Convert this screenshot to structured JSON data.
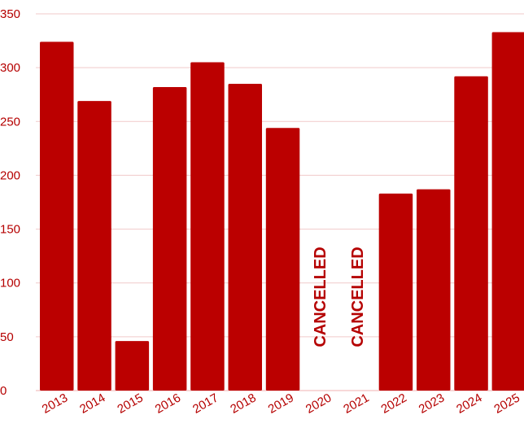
{
  "chart_data": {
    "type": "bar",
    "categories": [
      "2013",
      "2014",
      "2015",
      "2016",
      "2017",
      "2018",
      "2019",
      "2020",
      "2021",
      "2022",
      "2023",
      "2024",
      "2025"
    ],
    "values": [
      324,
      269,
      46,
      282,
      305,
      285,
      244,
      null,
      null,
      183,
      187,
      292,
      333
    ],
    "ylim": [
      0,
      350
    ],
    "yticks": [
      0,
      50,
      100,
      150,
      200,
      250,
      300,
      350
    ],
    "ytick_labels": [
      "0",
      "50",
      "100",
      "150",
      "200",
      "250",
      "300",
      "350"
    ],
    "grid": true,
    "annotations": [
      {
        "category": "2020",
        "text": "CANCELLED"
      },
      {
        "category": "2021",
        "text": "CANCELLED"
      }
    ],
    "colors": {
      "bar": "#bb0000",
      "text": "#b50000",
      "grid": "#f1c9c9",
      "axis": "#f0b0b0"
    }
  }
}
